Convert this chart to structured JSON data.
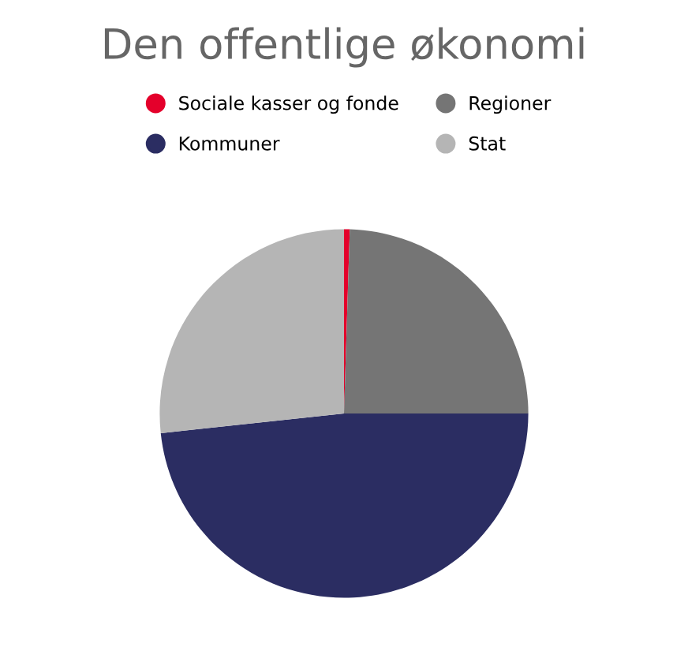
{
  "chart_data": {
    "type": "pie",
    "title": "Den offentlige økonomi",
    "categories": [
      "Sociale kasser og fonde",
      "Regioner",
      "Kommuner",
      "Stat"
    ],
    "values": [
      0.5,
      24.5,
      48.3,
      26.7
    ],
    "colors": [
      "#e4002b",
      "#757575",
      "#2b2d62",
      "#b5b5b5"
    ],
    "legend": "top"
  }
}
